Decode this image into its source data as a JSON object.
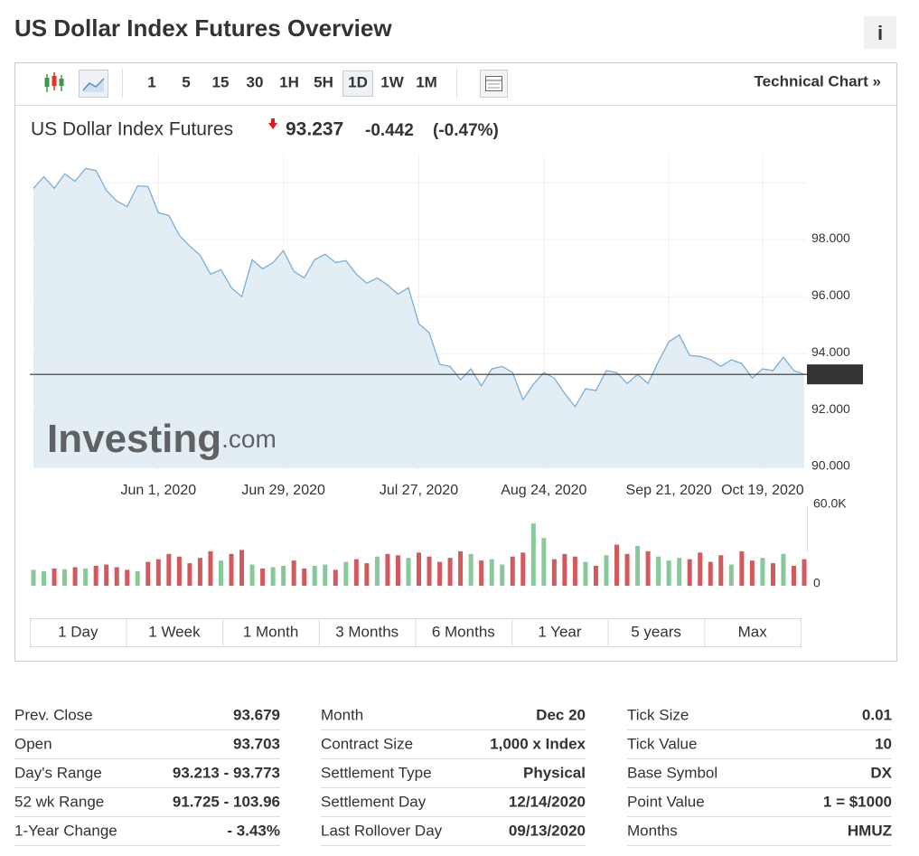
{
  "header": {
    "title": "US Dollar Index Futures Overview",
    "info": "i"
  },
  "toolbar": {
    "intervals": [
      "1",
      "5",
      "15",
      "30",
      "1H",
      "5H",
      "1D",
      "1W",
      "1M"
    ],
    "active_interval": "1D",
    "technical_link": "Technical Chart »"
  },
  "chart_data": {
    "type": "line",
    "title": "US Dollar Index Futures",
    "price": 93.237,
    "change": -0.442,
    "change_pct": {
      "value": -0.47,
      "label": "(-0.47%)"
    },
    "watermark": [
      "Investing",
      ".com"
    ],
    "color": "#7aaedb",
    "area_color": "#e3edf4",
    "grid": true,
    "categories": [
      null,
      null,
      null,
      null,
      null,
      null,
      null,
      null,
      null,
      null,
      null,
      null,
      "Jun 1, 2020",
      null,
      null,
      null,
      null,
      null,
      null,
      null,
      null,
      null,
      null,
      null,
      "Jun 29, 2020",
      null,
      null,
      null,
      null,
      null,
      null,
      null,
      null,
      null,
      null,
      null,
      null,
      "Jul 27, 2020",
      null,
      null,
      null,
      null,
      null,
      null,
      null,
      null,
      null,
      null,
      null,
      "Aug 24, 2020",
      null,
      null,
      null,
      null,
      null,
      null,
      null,
      null,
      null,
      null,
      null,
      "Sep 21, 2020",
      null,
      null,
      null,
      null,
      null,
      null,
      null,
      null,
      "Oct 19, 2020",
      null,
      null,
      null,
      null
    ],
    "values": [
      99.78,
      100.19,
      99.78,
      100.29,
      100.03,
      100.48,
      100.41,
      99.71,
      99.33,
      99.14,
      99.87,
      99.84,
      98.92,
      98.83,
      98.13,
      97.75,
      97.43,
      96.76,
      96.92,
      96.29,
      95.97,
      97.27,
      96.95,
      97.17,
      97.59,
      96.86,
      96.63,
      97.27,
      97.46,
      97.17,
      97.24,
      96.76,
      96.44,
      96.63,
      96.38,
      96.06,
      96.29,
      95.02,
      94.7,
      93.59,
      93.52,
      93.05,
      93.43,
      92.83,
      93.43,
      93.52,
      93.3,
      92.35,
      92.89,
      93.3,
      93.11,
      92.57,
      92.1,
      92.73,
      92.67,
      93.37,
      93.3,
      92.92,
      93.24,
      92.92,
      93.68,
      94.38,
      94.63,
      93.9,
      93.87,
      93.75,
      93.52,
      93.75,
      93.62,
      93.11,
      93.43,
      93.37,
      93.84,
      93.37,
      93.237
    ],
    "ylim": [
      90,
      101
    ],
    "yticks": [
      {
        "value": 90,
        "label": "90.000"
      },
      {
        "value": 92,
        "label": "92.000"
      },
      {
        "value": 94,
        "label": "94.000"
      },
      {
        "value": 96,
        "label": "96.000"
      },
      {
        "value": 98,
        "label": "98.000"
      }
    ],
    "volume": {
      "values": [
        12000,
        11000,
        13000,
        12500,
        14000,
        13000,
        15000,
        16000,
        14000,
        12000,
        11000,
        18000,
        20000,
        24000,
        22000,
        17000,
        21000,
        26000,
        19000,
        24000,
        27000,
        16000,
        13000,
        14000,
        15000,
        19000,
        13000,
        15000,
        16000,
        12000,
        18000,
        20000,
        17000,
        22000,
        24000,
        23000,
        21000,
        25000,
        22000,
        18000,
        21000,
        26000,
        24000,
        19000,
        20000,
        16000,
        22000,
        25000,
        47000,
        36000,
        20000,
        24000,
        22000,
        18000,
        15000,
        23000,
        31000,
        24000,
        30000,
        26000,
        22000,
        19000,
        21000,
        20000,
        25000,
        18000,
        23000,
        16000,
        26000,
        19000,
        21000,
        17000,
        24000,
        15000,
        20000
      ],
      "ylim": [
        0,
        60000
      ],
      "yticks": [
        0,
        {
          "value": 60000,
          "label": "60.0K"
        }
      ],
      "up_color": "#86c99b",
      "down_color": "#d3595d"
    },
    "ranges": [
      "1 Day",
      "1 Week",
      "1 Month",
      "3 Months",
      "6 Months",
      "1 Year",
      "5 years",
      "Max"
    ]
  },
  "stats": [
    [
      {
        "label": "Prev. Close",
        "value": "93.679"
      },
      {
        "label": "Open",
        "value": "93.703"
      },
      {
        "label": "Day's Range",
        "value": "93.213 - 93.773"
      },
      {
        "label": "52 wk Range",
        "value": "91.725 - 103.96"
      },
      {
        "label": "1-Year Change",
        "value": "- 3.43%"
      }
    ],
    [
      {
        "label": "Month",
        "value": "Dec 20"
      },
      {
        "label": "Contract Size",
        "value": "1,000 x Index"
      },
      {
        "label": "Settlement Type",
        "value": "Physical"
      },
      {
        "label": "Settlement Day",
        "value": "12/14/2020"
      },
      {
        "label": "Last Rollover Day",
        "value": "09/13/2020"
      }
    ],
    [
      {
        "label": "Tick Size",
        "value": "0.01"
      },
      {
        "label": "Tick Value",
        "value": "10"
      },
      {
        "label": "Base Symbol",
        "value": "DX"
      },
      {
        "label": "Point Value",
        "value": "1 = $1000"
      },
      {
        "label": "Months",
        "value": "HMUZ"
      }
    ]
  ]
}
